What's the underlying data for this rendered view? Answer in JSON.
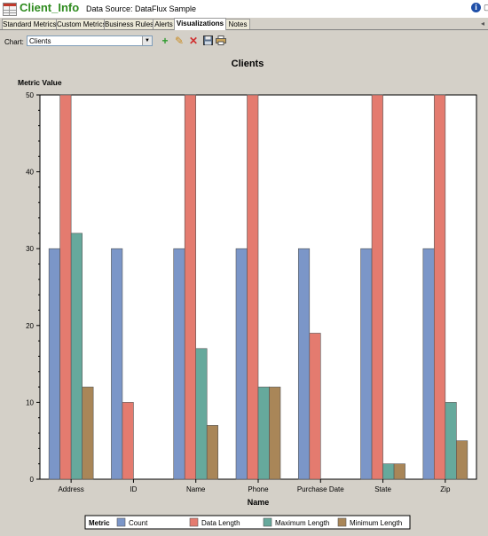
{
  "window": {
    "title": "Client_Info",
    "datasource": "Data Source: DataFlux Sample"
  },
  "tabs": [
    {
      "label": "Standard Metrics",
      "active": false
    },
    {
      "label": "Custom Metrics",
      "active": false
    },
    {
      "label": "Business Rules",
      "active": false
    },
    {
      "label": "Alerts",
      "active": false
    },
    {
      "label": "Visualizations",
      "active": true
    },
    {
      "label": "Notes",
      "active": false
    }
  ],
  "toolbar": {
    "chart_label": "Chart:",
    "chart_value": "Clients",
    "buttons": [
      "add-icon",
      "edit-icon",
      "delete-icon",
      "save-icon",
      "print-icon"
    ]
  },
  "chart_data": {
    "type": "bar",
    "title": "Clients",
    "xlabel": "Name",
    "ylabel": "Metric Value",
    "ylim": [
      0,
      50
    ],
    "yticks": [
      0,
      10,
      20,
      30,
      40,
      50
    ],
    "categories": [
      "Address",
      "ID",
      "Name",
      "Phone",
      "Purchase Date",
      "State",
      "Zip"
    ],
    "legend_title": "Metric",
    "legend_position": "bottom",
    "series": [
      {
        "name": "Count",
        "color": "#7b96c8",
        "values": [
          30,
          30,
          30,
          30,
          30,
          30,
          30
        ]
      },
      {
        "name": "Data Length",
        "color": "#e47b6f",
        "values": [
          50,
          10,
          50,
          50,
          19,
          50,
          50
        ]
      },
      {
        "name": "Maximum Length",
        "color": "#66a99c",
        "values": [
          32,
          null,
          17,
          12,
          null,
          2,
          10
        ]
      },
      {
        "name": "Minimum Length",
        "color": "#a98658",
        "values": [
          12,
          null,
          7,
          12,
          null,
          2,
          5
        ]
      }
    ]
  }
}
